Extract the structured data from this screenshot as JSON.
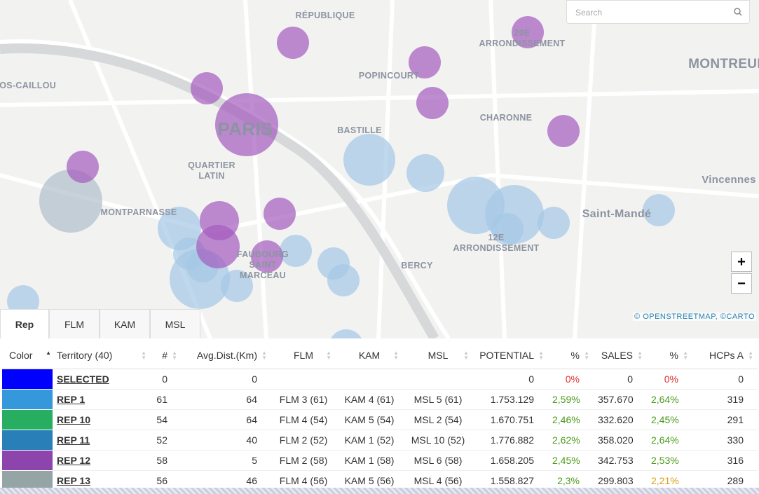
{
  "map": {
    "search_placeholder": "Search",
    "zoom_in": "+",
    "zoom_out": "−",
    "attribution": "© OPENSTREETMAP, ©CARTO",
    "labels": [
      {
        "lines": [
          "RÉPUBLIQUE"
        ]
      },
      {
        "lines": [
          "20E",
          "ARRONDISSEMENT"
        ]
      },
      {
        "lines": [
          "MONTREUIL"
        ]
      },
      {
        "lines": [
          "GROS-CAILLOU"
        ]
      },
      {
        "lines": [
          "POPINCOURT"
        ]
      },
      {
        "lines": [
          "PARIS"
        ]
      },
      {
        "lines": [
          "BASTILLE"
        ]
      },
      {
        "lines": [
          "CHARONNE"
        ]
      },
      {
        "lines": [
          "QUARTIER",
          "LATIN"
        ]
      },
      {
        "lines": [
          "Vincennes"
        ]
      },
      {
        "lines": [
          "MONTPARNASSE"
        ]
      },
      {
        "lines": [
          "Saint-Mandé"
        ]
      },
      {
        "lines": [
          "12E",
          "ARRONDISSEMENT"
        ]
      },
      {
        "lines": [
          "FAUBOURG",
          "SAINT",
          "MARCEAU"
        ]
      },
      {
        "lines": [
          "BERCY"
        ]
      }
    ]
  },
  "tabs": [
    "Rep",
    "FLM",
    "KAM",
    "MSL"
  ],
  "table": {
    "columns": [
      "Color",
      "Territory (40)",
      "#",
      "Avg.Dist.(Km)",
      "FLM",
      "KAM",
      "MSL",
      "POTENTIAL",
      "%",
      "SALES",
      "%",
      "HCPs A"
    ],
    "rows": [
      {
        "color": "#0000ff",
        "territory": "SELECTED",
        "count": "0",
        "dist": "0",
        "potential": "0",
        "pct1": "0%",
        "pct1_color": "#e03030",
        "sales": "0",
        "pct2": "0%",
        "pct2_color": "#e03030",
        "hcps": "0"
      },
      {
        "color": "#3498db",
        "territory": "REP 1",
        "count": "61",
        "dist": "64",
        "flm": "FLM 3 (61)",
        "kam": "KAM 4 (61)",
        "msl": "MSL 5 (61)",
        "potential": "1.753.129",
        "pct1": "2,59%",
        "pct1_color": "#4a9a1a",
        "sales": "357.670",
        "pct2": "2,64%",
        "pct2_color": "#4a9a1a",
        "hcps": "319"
      },
      {
        "color": "#27ae60",
        "territory": "REP 10",
        "count": "54",
        "dist": "64",
        "flm": "FLM 4 (54)",
        "kam": "KAM 5 (54)",
        "msl": "MSL 2 (54)",
        "potential": "1.670.751",
        "pct1": "2,46%",
        "pct1_color": "#4a9a1a",
        "sales": "332.620",
        "pct2": "2,45%",
        "pct2_color": "#4a9a1a",
        "hcps": "291"
      },
      {
        "color": "#2980b9",
        "territory": "REP 11",
        "count": "52",
        "dist": "40",
        "flm": "FLM 2 (52)",
        "kam": "KAM 1 (52)",
        "msl": "MSL 10 (52)",
        "potential": "1.776.882",
        "pct1": "2,62%",
        "pct1_color": "#4a9a1a",
        "sales": "358.020",
        "pct2": "2,64%",
        "pct2_color": "#4a9a1a",
        "hcps": "330"
      },
      {
        "color": "#8e44ad",
        "territory": "REP 12",
        "count": "58",
        "dist": "5",
        "flm": "FLM 2 (58)",
        "kam": "KAM 1 (58)",
        "msl": "MSL 6 (58)",
        "potential": "1.658.205",
        "pct1": "2,45%",
        "pct1_color": "#4a9a1a",
        "sales": "342.753",
        "pct2": "2,53%",
        "pct2_color": "#4a9a1a",
        "hcps": "316"
      },
      {
        "color": "#95a5a6",
        "territory": "REP 13",
        "count": "56",
        "dist": "46",
        "flm": "FLM 4 (56)",
        "kam": "KAM 5 (56)",
        "msl": "MSL 4 (56)",
        "potential": "1.558.827",
        "pct1": "2,3%",
        "pct1_color": "#4a9a1a",
        "sales": "299.803",
        "pct2": "2,21%",
        "pct2_color": "#d4a017",
        "hcps": "289"
      }
    ]
  }
}
